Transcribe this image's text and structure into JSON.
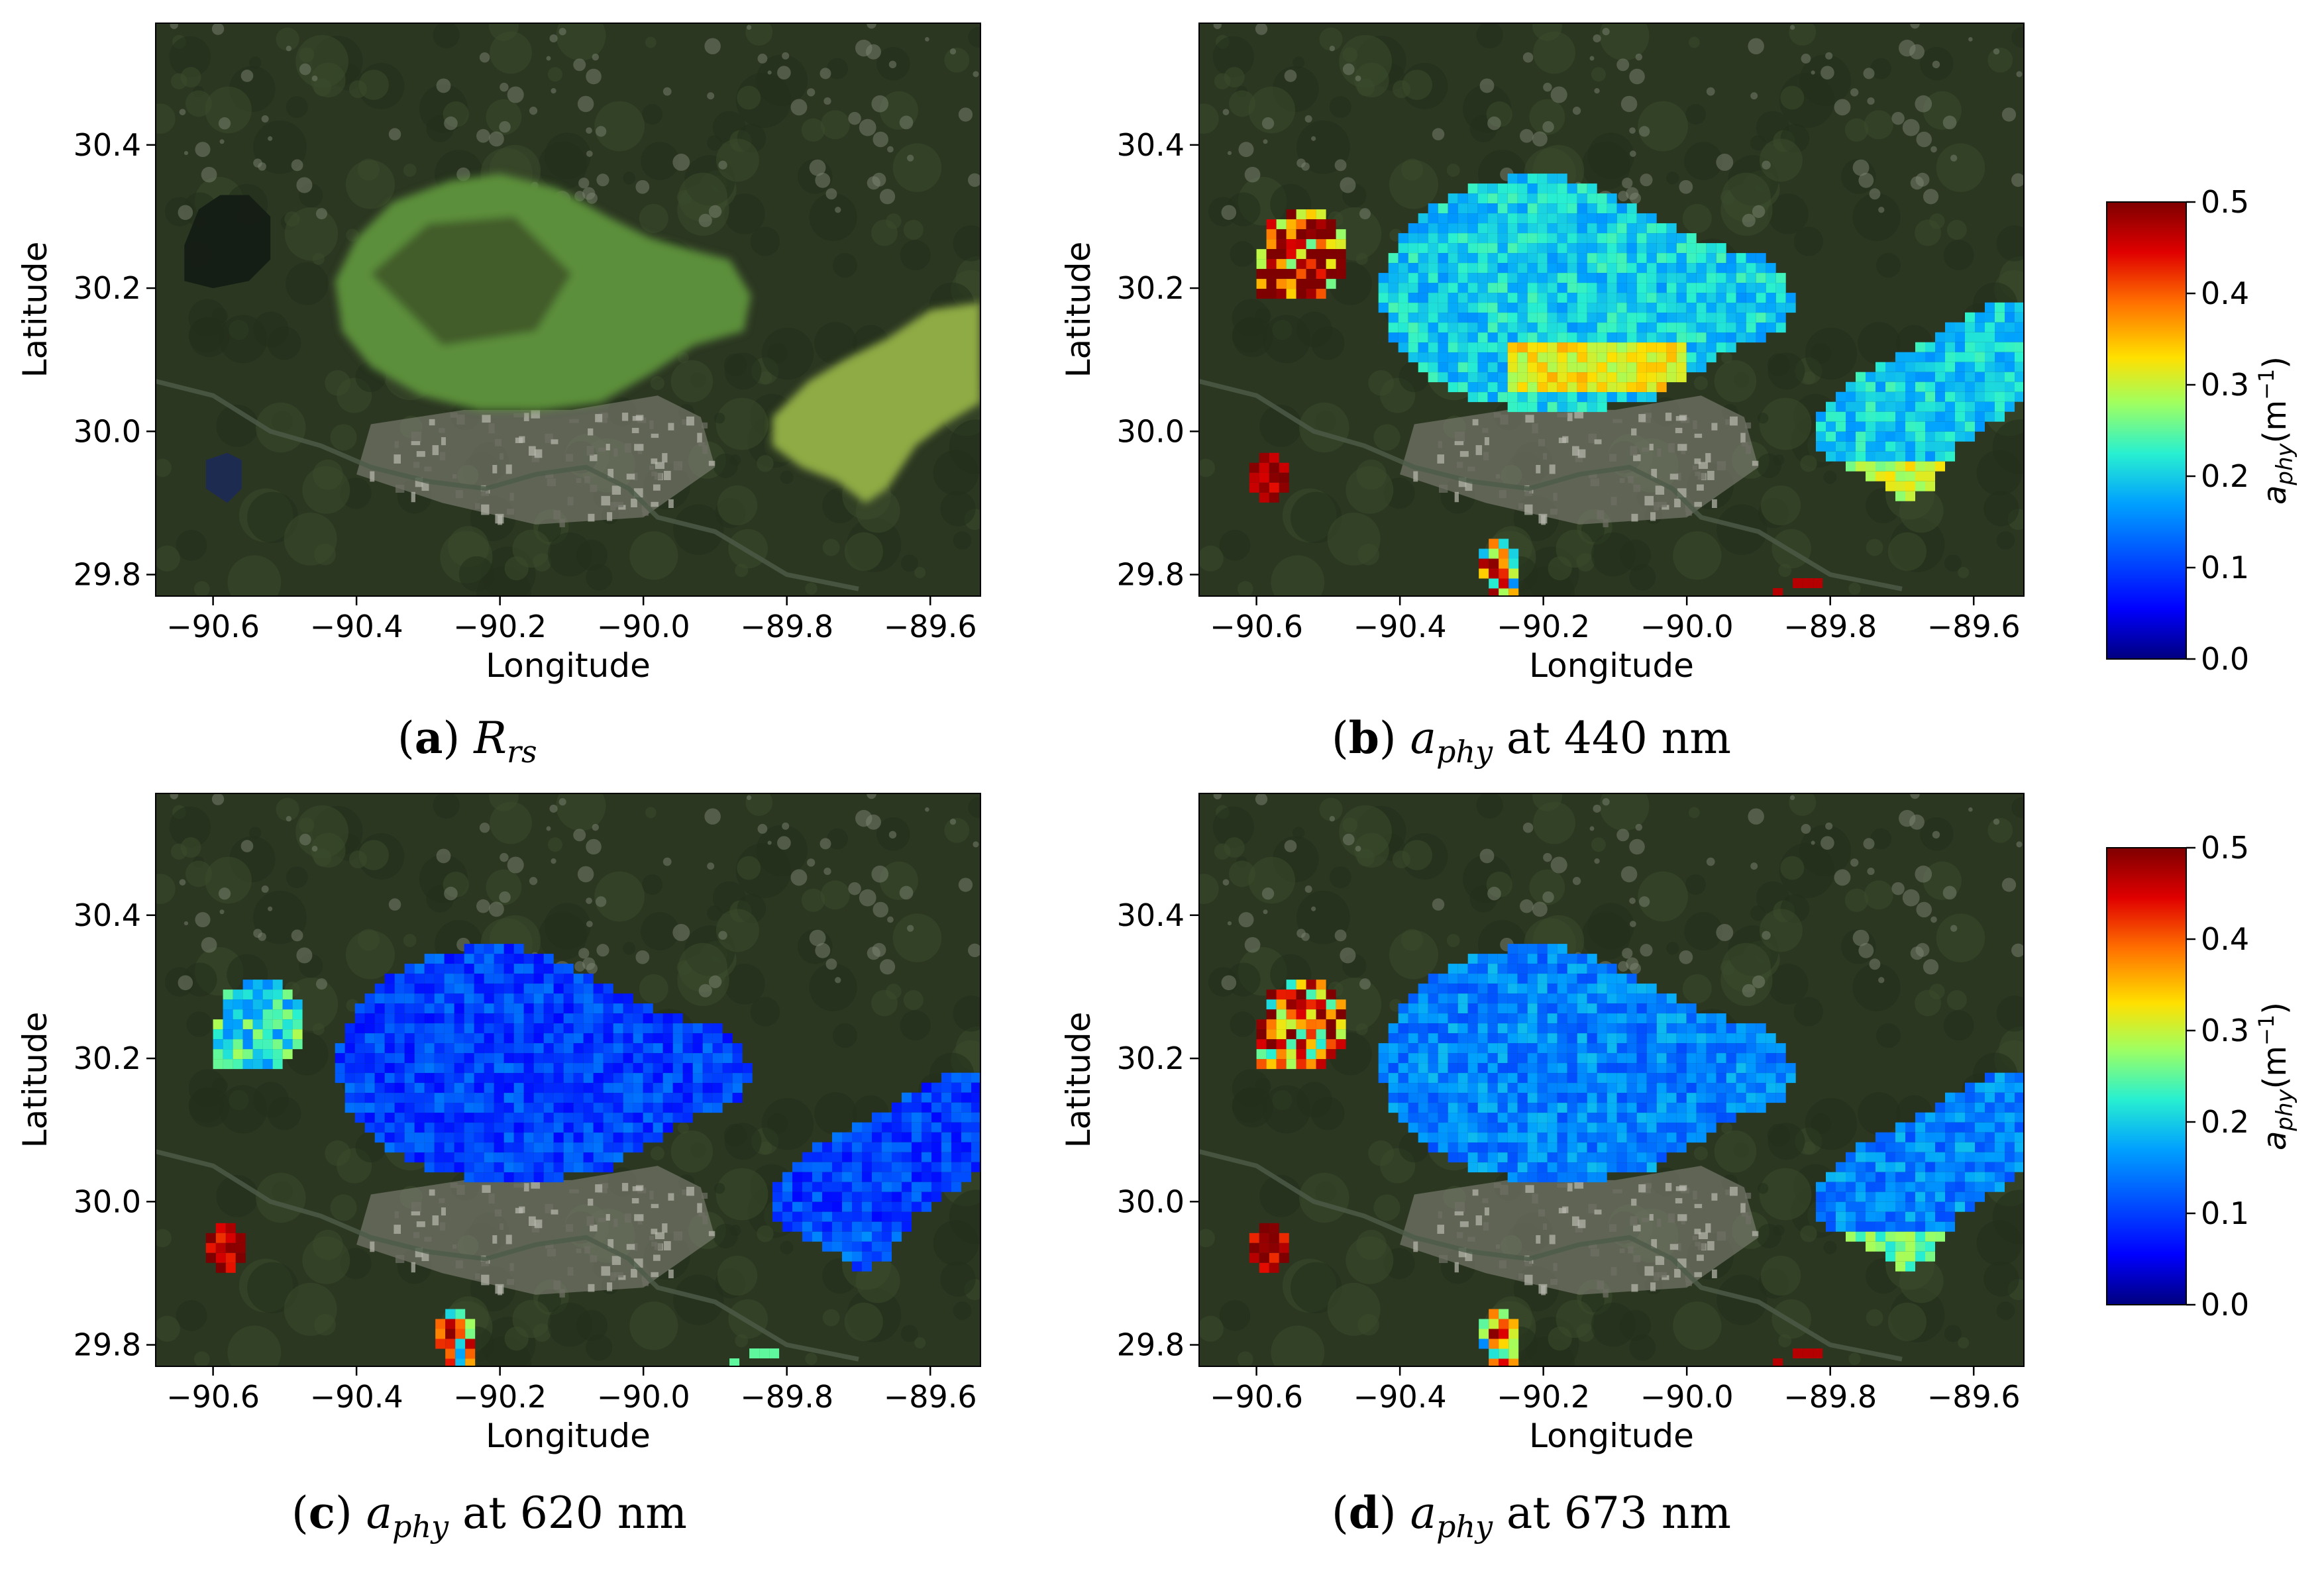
{
  "chart_data": [
    {
      "type": "heatmap",
      "panel": "a",
      "caption": {
        "letter": "a",
        "symbol": "R",
        "subscript": "rs",
        "suffix": ""
      },
      "xlabel": "Longitude",
      "ylabel": "Latitude",
      "xticks": [
        "−90.6",
        "−90.4",
        "−90.2",
        "−90.0",
        "−89.8",
        "−89.6"
      ],
      "yticks": [
        "29.8",
        "30.0",
        "30.2",
        "30.4"
      ],
      "xlim": [
        -90.68,
        -89.53
      ],
      "ylim": [
        29.77,
        30.57
      ],
      "colormap": "true-color RGB",
      "legend": "none"
    },
    {
      "type": "heatmap",
      "panel": "b",
      "caption": {
        "letter": "b",
        "symbol": "a",
        "subscript": "phy",
        "suffix": " at 440 nm"
      },
      "xlabel": "Longitude",
      "ylabel": "Latitude",
      "xticks": [
        "−90.6",
        "−90.4",
        "−90.2",
        "−90.0",
        "−89.8",
        "−89.6"
      ],
      "yticks": [
        "29.8",
        "30.0",
        "30.2",
        "30.4"
      ],
      "xlim": [
        -90.68,
        -89.53
      ],
      "ylim": [
        29.77,
        30.57
      ],
      "colormap": "jet",
      "clim": [
        0.0,
        0.5
      ],
      "typical_value": 0.2,
      "legend": "colorbar-right"
    },
    {
      "type": "heatmap",
      "panel": "c",
      "caption": {
        "letter": "c",
        "symbol": "a",
        "subscript": "phy",
        "suffix": " at 620 nm"
      },
      "xlabel": "Longitude",
      "ylabel": "Latitude",
      "xticks": [
        "−90.6",
        "−90.4",
        "−90.2",
        "−90.0",
        "−89.8",
        "−89.6"
      ],
      "yticks": [
        "29.8",
        "30.0",
        "30.2",
        "30.4"
      ],
      "xlim": [
        -90.68,
        -89.53
      ],
      "ylim": [
        29.77,
        30.57
      ],
      "colormap": "jet",
      "clim": [
        0.0,
        0.5
      ],
      "typical_value": 0.1,
      "legend": "none"
    },
    {
      "type": "heatmap",
      "panel": "d",
      "caption": {
        "letter": "d",
        "symbol": "a",
        "subscript": "phy",
        "suffix": " at 673 nm"
      },
      "xlabel": "Longitude",
      "ylabel": "Latitude",
      "xticks": [
        "−90.6",
        "−90.4",
        "−90.2",
        "−90.0",
        "−89.8",
        "−89.6"
      ],
      "yticks": [
        "29.8",
        "30.0",
        "30.2",
        "30.4"
      ],
      "xlim": [
        -90.68,
        -89.53
      ],
      "ylim": [
        29.77,
        30.57
      ],
      "colormap": "jet",
      "clim": [
        0.0,
        0.5
      ],
      "typical_value": 0.15,
      "legend": "colorbar-right"
    }
  ],
  "colorbars": [
    {
      "ticks": [
        "0.0",
        "0.1",
        "0.2",
        "0.3",
        "0.4",
        "0.5"
      ],
      "label_main": "a",
      "label_sub": "phy",
      "label_unit": "(m",
      "label_exp": "−1",
      "label_close": ")"
    },
    {
      "ticks": [
        "0.0",
        "0.1",
        "0.2",
        "0.3",
        "0.4",
        "0.5"
      ],
      "label_main": "a",
      "label_sub": "phy",
      "label_unit": "(m",
      "label_exp": "−1",
      "label_close": ")"
    }
  ],
  "colors": {
    "land": "#2c3722",
    "urban": "#8a8a80",
    "rgb_water": "#5c8f3a",
    "colormap_stops": [
      "#00007f",
      "#0000ff",
      "#00a0ff",
      "#28f0d0",
      "#a0ff60",
      "#ffe000",
      "#ff7000",
      "#e00000",
      "#7f0000"
    ]
  }
}
